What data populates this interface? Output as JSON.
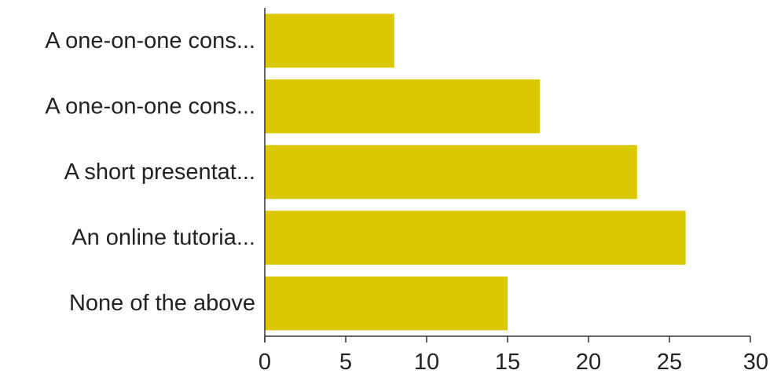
{
  "chart_data": {
    "type": "bar",
    "orientation": "horizontal",
    "categories": [
      "A one-on-one cons...",
      "A one-on-one cons...",
      "A short presentat...",
      "An online tutoria...",
      "None of the above"
    ],
    "values": [
      8,
      17,
      23,
      26,
      15
    ],
    "xlim": [
      0,
      30
    ],
    "xticks": [
      "0",
      "5",
      "10",
      "15",
      "20",
      "25",
      "30"
    ],
    "bar_color": "#dbc800",
    "grid": false,
    "legend": "none"
  }
}
